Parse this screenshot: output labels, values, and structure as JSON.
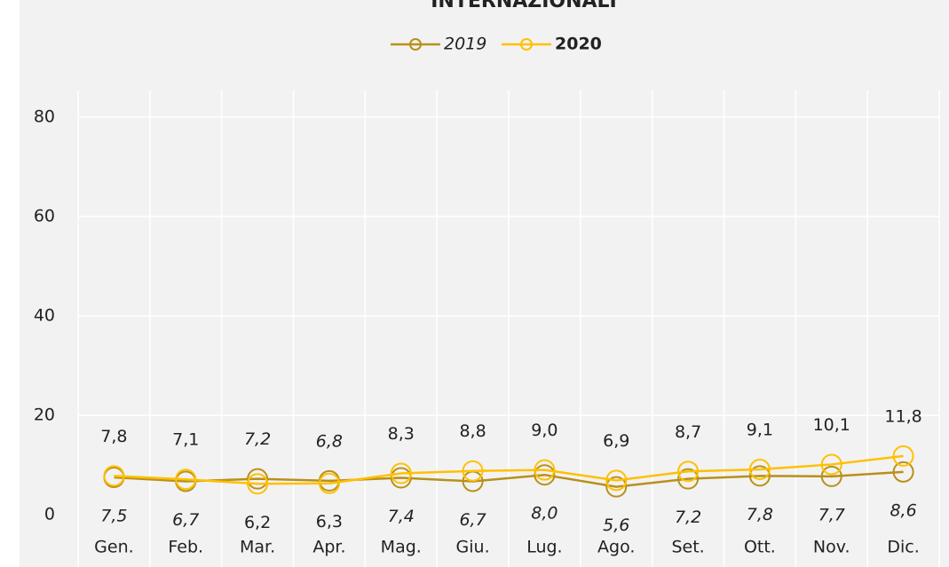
{
  "chart_data": {
    "type": "line",
    "title": "INTERNAZIONALI",
    "categories": [
      "Gen.",
      "Feb.",
      "Mar.",
      "Apr.",
      "Mag.",
      "Giu.",
      "Lug.",
      "Ago.",
      "Set.",
      "Ott.",
      "Nov.",
      "Dic."
    ],
    "series": [
      {
        "name": "2019",
        "color": "#b8901a",
        "values": [
          7.5,
          6.7,
          7.2,
          6.8,
          7.4,
          6.7,
          8.0,
          5.6,
          7.2,
          7.8,
          7.7,
          8.6
        ],
        "value_labels": [
          "7,5",
          "6,7",
          "7,2",
          "6,8",
          "7,4",
          "6,7",
          "8,0",
          "5,6",
          "7,2",
          "7,8",
          "7,7",
          "8,6"
        ]
      },
      {
        "name": "2020",
        "color": "#ffc000",
        "values": [
          7.8,
          7.1,
          6.2,
          6.3,
          8.3,
          8.8,
          9.0,
          6.9,
          8.7,
          9.1,
          10.1,
          11.8
        ],
        "value_labels": [
          "7,8",
          "7,1",
          "6,2",
          "6,3",
          "8,3",
          "8,8",
          "9,0",
          "6,9",
          "8,7",
          "9,1",
          "10,1",
          "11,8"
        ]
      }
    ],
    "ylim": [
      0,
      80
    ],
    "yticks": [
      0,
      20,
      40,
      60,
      80
    ],
    "grid": true,
    "legend": "top"
  }
}
